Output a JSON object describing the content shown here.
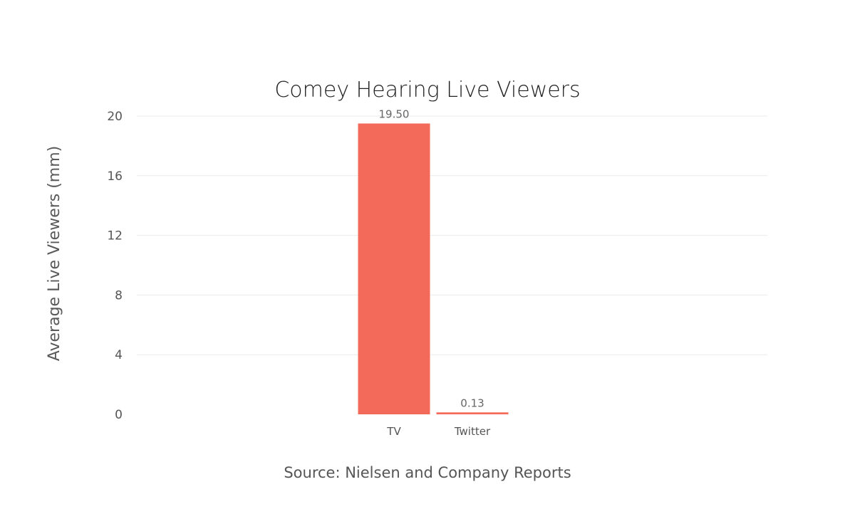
{
  "chart_data": {
    "type": "bar",
    "title": "Comey Hearing Live Viewers",
    "ylabel": "Average Live Viewers (mm)",
    "xlabel": "",
    "categories": [
      "TV",
      "Twitter"
    ],
    "values": [
      19.5,
      0.13
    ],
    "data_labels": [
      "19.50",
      "0.13"
    ],
    "ylim": [
      0,
      20
    ],
    "yticks": [
      "0",
      "4",
      "8",
      "12",
      "16",
      "20"
    ],
    "grid": true,
    "bar_color": "#f46a5a",
    "source": "Source: Nielsen and Company Reports"
  }
}
